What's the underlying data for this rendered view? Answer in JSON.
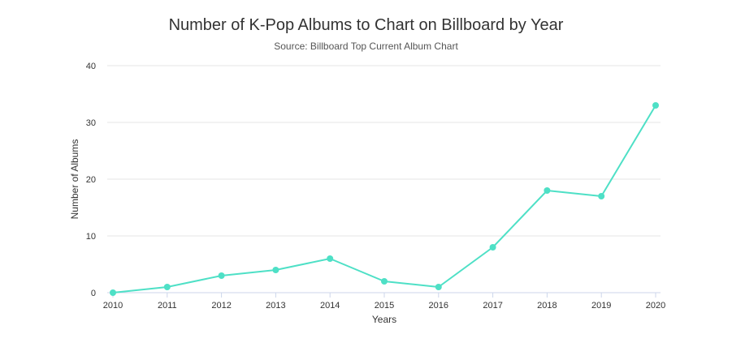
{
  "chart_data": {
    "type": "line",
    "title": "Number of K-Pop Albums to Chart on Billboard by Year",
    "subtitle": "Source: Billboard Top Current Album Chart",
    "xlabel": "Years",
    "ylabel": "Number of Albums",
    "x": [
      "2010",
      "2011",
      "2012",
      "2013",
      "2014",
      "2015",
      "2016",
      "2017",
      "2018",
      "2019",
      "2020"
    ],
    "series": [
      {
        "values": [
          0,
          1,
          3,
          4,
          6,
          2,
          1,
          8,
          18,
          17,
          33
        ]
      }
    ],
    "ylim": [
      0,
      40
    ],
    "yticks": [
      "0",
      "10",
      "20",
      "30",
      "40"
    ],
    "grid": true,
    "legend": "none",
    "colors": {
      "line": "#4ee0c6",
      "grid": "#e6e6e6",
      "axis": "#ccd6eb"
    }
  }
}
